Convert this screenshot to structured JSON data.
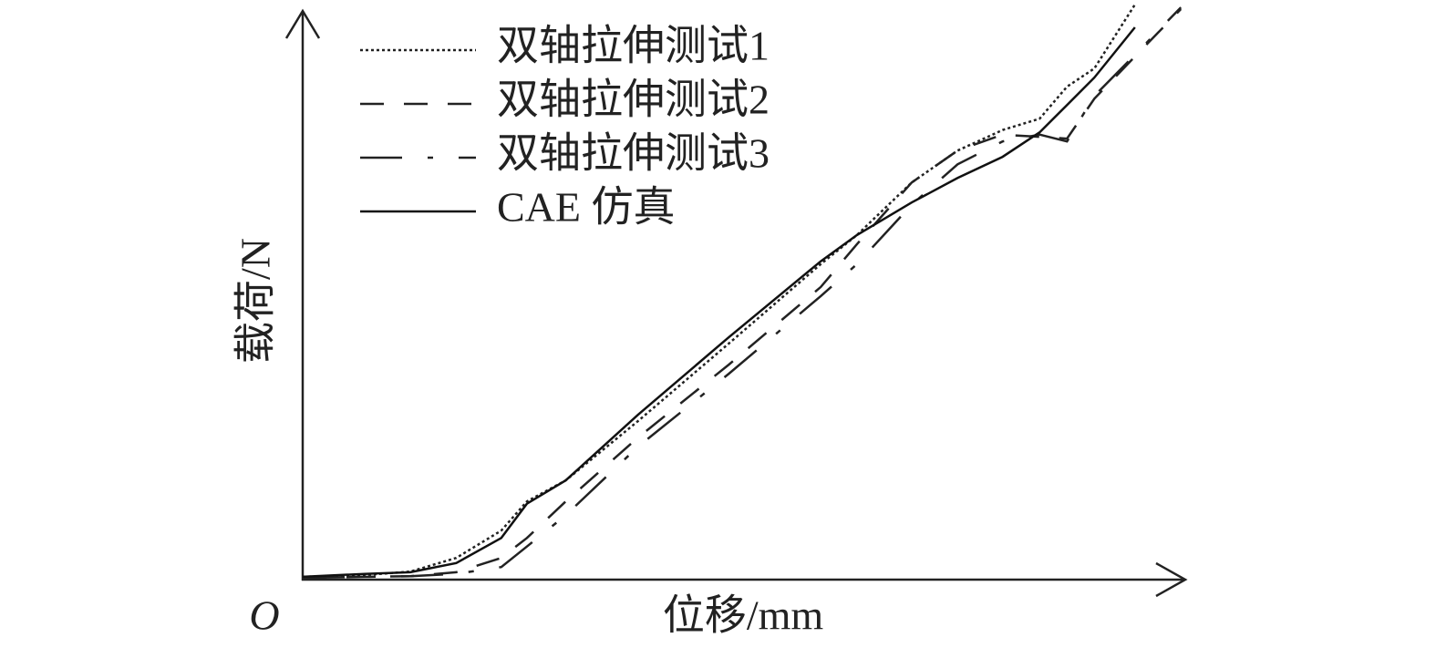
{
  "chart_data": {
    "type": "line",
    "xlabel": "位移/mm",
    "ylabel": "载荷/N",
    "origin_label": "O",
    "xlim": [
      0,
      100
    ],
    "ylim": [
      0,
      100
    ],
    "x": [
      0,
      7.0,
      12.2,
      17.4,
      22.5,
      25.4,
      29.8,
      38.0,
      48.3,
      58.7,
      62.8,
      69.0,
      74.2,
      79.3,
      83.5,
      86.6,
      89.7,
      94.3,
      99.5
    ],
    "series": [
      {
        "name": "双轴拉伸测试1",
        "color": "#222222",
        "dash": "dotted",
        "values": [
          0.5,
          0.8,
          1.4,
          3.8,
          8.6,
          13.7,
          17.4,
          27.8,
          41.4,
          55.3,
          60.4,
          69.6,
          75.2,
          78.8,
          80.8,
          86.4,
          89.6,
          100.8,
          null
        ]
      },
      {
        "name": "双轴拉伸测试2",
        "color": "#222222",
        "dash": "dashed",
        "values": [
          0.3,
          0.5,
          0.6,
          1.3,
          3.8,
          7.3,
          13.7,
          24.9,
          37.7,
          51.3,
          58.8,
          69.6,
          75.2,
          78.0,
          77.6,
          77.3,
          84.3,
          91.7,
          100.0
        ]
      },
      {
        "name": "双轴拉伸测试3",
        "color": "#222222",
        "dash": "dashdot",
        "values": [
          0.3,
          0.5,
          0.6,
          1.0,
          2.2,
          5.8,
          11.3,
          23.3,
          36.1,
          49.7,
          55.3,
          65.7,
          72.8,
          76.8,
          78.0,
          76.8,
          84.8,
          92.0,
          100.3
        ]
      },
      {
        "name": "CAE 仿真",
        "color": "#111111",
        "dash": "solid",
        "values": [
          0.5,
          1.0,
          1.3,
          2.9,
          7.3,
          13.3,
          17.4,
          28.9,
          42.5,
          55.8,
          60.4,
          66.1,
          70.4,
          74.1,
          78.4,
          83.2,
          88.0,
          96.8,
          null
        ]
      }
    ]
  }
}
